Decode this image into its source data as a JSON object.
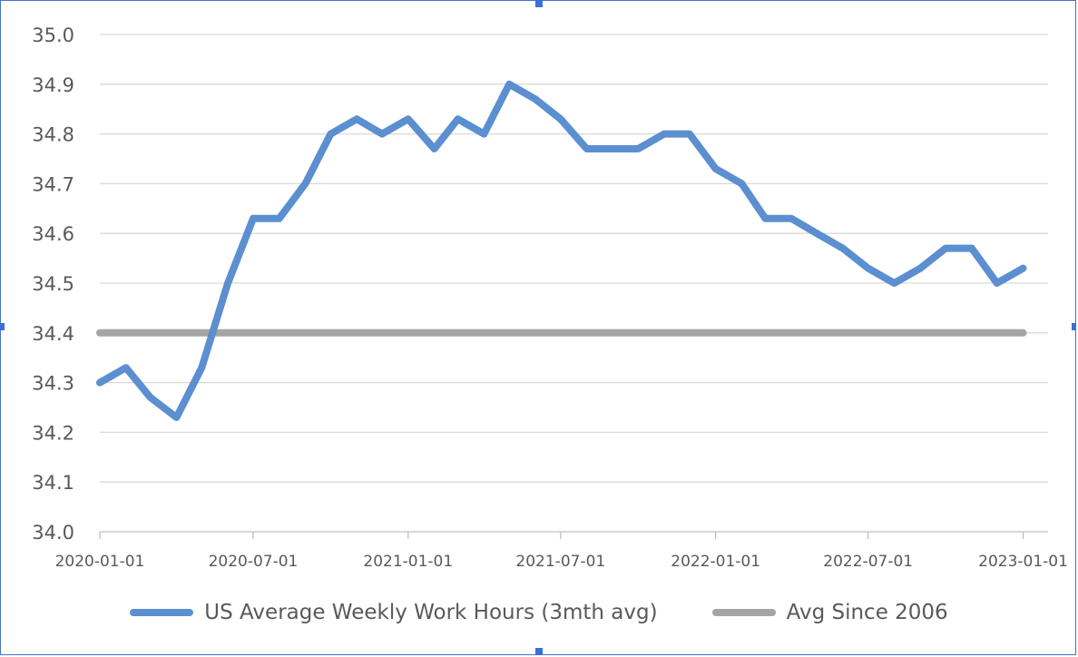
{
  "chart_data": {
    "type": "line",
    "title": "",
    "xlabel": "",
    "ylabel": "",
    "ylim": [
      34.0,
      35.0
    ],
    "yticks": [
      "34.0",
      "34.1",
      "34.2",
      "34.3",
      "34.4",
      "34.5",
      "34.6",
      "34.7",
      "34.8",
      "34.9",
      "35.0"
    ],
    "xticks": [
      "2020-01-01",
      "2020-07-01",
      "2021-01-01",
      "2021-07-01",
      "2022-01-01",
      "2022-07-01",
      "2023-01-01"
    ],
    "grid": true,
    "legend_position": "bottom",
    "series": [
      {
        "name": "US Average Weekly Work Hours (3mth avg)",
        "color": "#5b8fd0",
        "points": [
          [
            "2020-01-01",
            34.3
          ],
          [
            "2020-02-01",
            34.33
          ],
          [
            "2020-03-01",
            34.27
          ],
          [
            "2020-04-01",
            34.23
          ],
          [
            "2020-05-01",
            34.33
          ],
          [
            "2020-06-01",
            34.5
          ],
          [
            "2020-07-01",
            34.63
          ],
          [
            "2020-08-01",
            34.63
          ],
          [
            "2020-09-01",
            34.7
          ],
          [
            "2020-10-01",
            34.8
          ],
          [
            "2020-11-01",
            34.83
          ],
          [
            "2020-12-01",
            34.8
          ],
          [
            "2021-01-01",
            34.83
          ],
          [
            "2021-02-01",
            34.77
          ],
          [
            "2021-03-01",
            34.83
          ],
          [
            "2021-04-01",
            34.8
          ],
          [
            "2021-05-01",
            34.9
          ],
          [
            "2021-06-01",
            34.87
          ],
          [
            "2021-07-01",
            34.83
          ],
          [
            "2021-08-01",
            34.77
          ],
          [
            "2021-09-01",
            34.77
          ],
          [
            "2021-10-01",
            34.77
          ],
          [
            "2021-11-01",
            34.8
          ],
          [
            "2021-12-01",
            34.8
          ],
          [
            "2022-01-01",
            34.73
          ],
          [
            "2022-02-01",
            34.7
          ],
          [
            "2022-03-01",
            34.63
          ],
          [
            "2022-04-01",
            34.63
          ],
          [
            "2022-05-01",
            34.6
          ],
          [
            "2022-06-01",
            34.57
          ],
          [
            "2022-07-01",
            34.53
          ],
          [
            "2022-08-01",
            34.5
          ],
          [
            "2022-09-01",
            34.53
          ],
          [
            "2022-10-01",
            34.57
          ],
          [
            "2022-11-01",
            34.57
          ],
          [
            "2022-12-01",
            34.5
          ],
          [
            "2023-01-01",
            34.53
          ]
        ]
      },
      {
        "name": "Avg Since 2006",
        "color": "#a5a5a5",
        "points": [
          [
            "2020-01-01",
            34.4
          ],
          [
            "2023-01-01",
            34.4
          ]
        ]
      }
    ]
  }
}
